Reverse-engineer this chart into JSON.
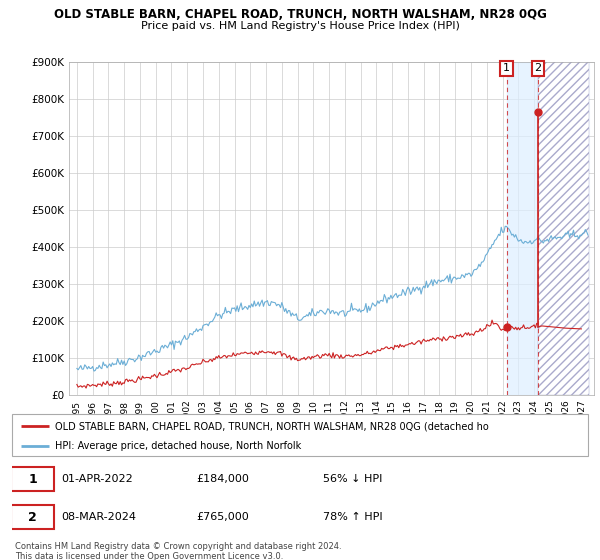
{
  "title": "OLD STABLE BARN, CHAPEL ROAD, TRUNCH, NORTH WALSHAM, NR28 0QG",
  "subtitle": "Price paid vs. HM Land Registry's House Price Index (HPI)",
  "legend_line1": "OLD STABLE BARN, CHAPEL ROAD, TRUNCH, NORTH WALSHAM, NR28 0QG (detached ho",
  "legend_line2": "HPI: Average price, detached house, North Norfolk",
  "footnote": "Contains HM Land Registry data © Crown copyright and database right 2024.\nThis data is licensed under the Open Government Licence v3.0.",
  "ylim": [
    0,
    900000
  ],
  "ytick_vals": [
    0,
    100000,
    200000,
    300000,
    400000,
    500000,
    600000,
    700000,
    800000,
    900000
  ],
  "ytick_labels": [
    "£0",
    "£100K",
    "£200K",
    "£300K",
    "£400K",
    "£500K",
    "£600K",
    "£700K",
    "£800K",
    "£900K"
  ],
  "hpi_color": "#6baed6",
  "price_color": "#cc2222",
  "marker1_x": 2022.25,
  "marker1_price": 184000,
  "marker2_x": 2024.25,
  "marker2_price": 765000,
  "shade_start": 2022.25,
  "shade_end": 2024.25,
  "hatch_start": 2024.25,
  "hatch_end": 2027.5,
  "sale1_date": "01-APR-2022",
  "sale1_price": "£184,000",
  "sale1_hpi": "56% ↓ HPI",
  "sale2_date": "08-MAR-2024",
  "sale2_price": "£765,000",
  "sale2_hpi": "78% ↑ HPI",
  "grid_color": "#cccccc",
  "xlim_left": 1994.5,
  "xlim_right": 2027.8,
  "xtick_years": [
    1995,
    1996,
    1997,
    1998,
    1999,
    2000,
    2001,
    2002,
    2003,
    2004,
    2005,
    2006,
    2007,
    2008,
    2009,
    2010,
    2011,
    2012,
    2013,
    2014,
    2015,
    2016,
    2017,
    2018,
    2019,
    2020,
    2021,
    2022,
    2023,
    2024,
    2025,
    2026,
    2027
  ]
}
